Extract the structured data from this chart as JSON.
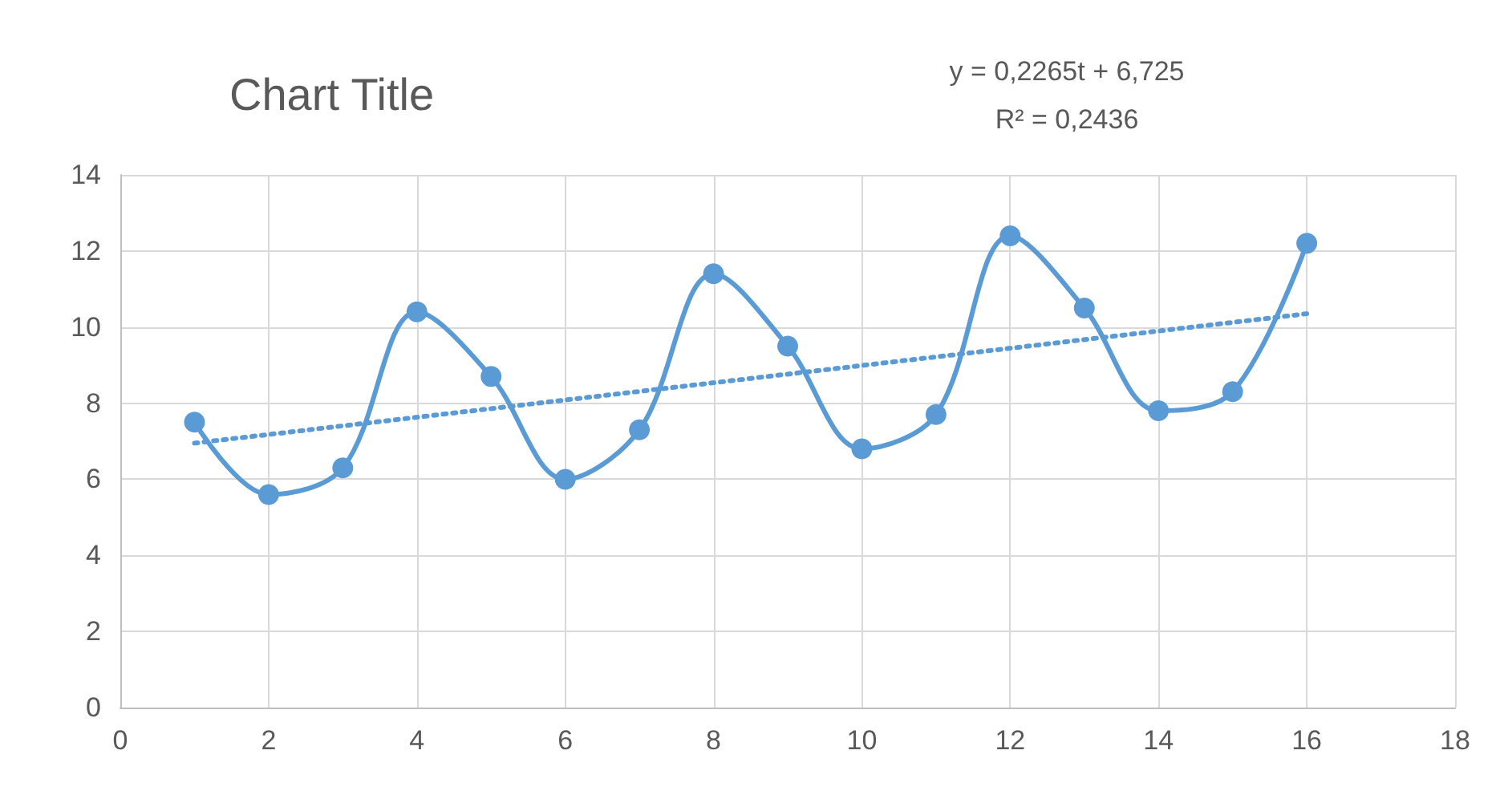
{
  "chart_data": {
    "type": "line",
    "title": "Chart Title",
    "annotations": [
      "y = 0,2265t + 6,725",
      "R² = 0,2436"
    ],
    "x": [
      1,
      2,
      3,
      4,
      5,
      6,
      7,
      8,
      9,
      10,
      11,
      12,
      13,
      14,
      15,
      16
    ],
    "series": [
      {
        "color": "#5b9bd5",
        "marker": "circle",
        "line_style": "solid",
        "values": [
          7.5,
          5.6,
          6.3,
          10.4,
          8.7,
          6.0,
          7.3,
          11.4,
          9.5,
          6.8,
          7.7,
          12.4,
          10.5,
          7.8,
          8.3,
          12.2
        ]
      },
      {
        "type": "line",
        "color": "#5b9bd5",
        "marker": "none",
        "line_style": "dotted",
        "x": [
          1,
          16
        ],
        "values": [
          6.95,
          10.35
        ]
      }
    ],
    "xlim": [
      0,
      18
    ],
    "xticks": [
      0,
      2,
      4,
      6,
      8,
      10,
      12,
      14,
      16,
      18
    ],
    "ylim": [
      0,
      14
    ],
    "yticks": [
      0,
      2,
      4,
      6,
      8,
      10,
      12,
      14
    ],
    "grid": true
  }
}
